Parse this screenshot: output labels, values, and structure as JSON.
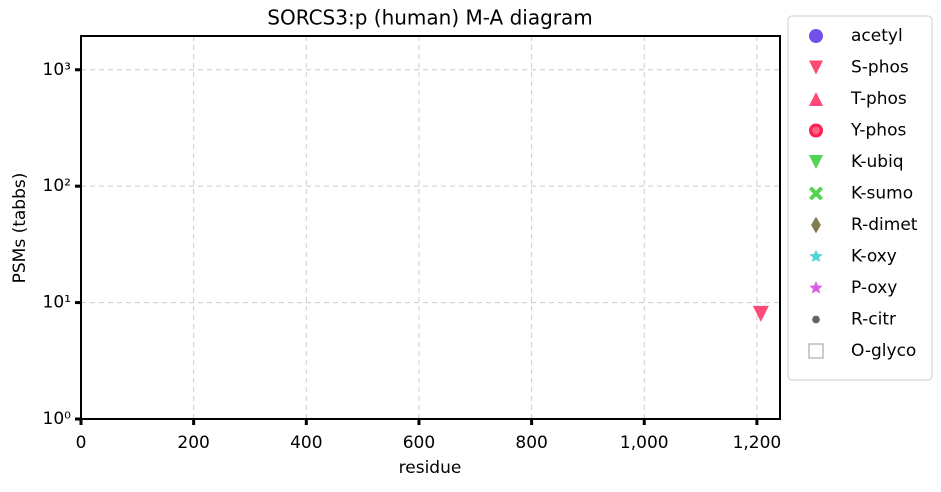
{
  "chart_data": {
    "type": "scatter",
    "title": "SORCS3:p (human) M-A diagram",
    "x_label": "residue",
    "y_label": "PSMs (tabbs)",
    "xlim": [
      0,
      1241
    ],
    "ylim": [
      1,
      1950
    ],
    "log_y": true,
    "grid": true,
    "legend": "outside right",
    "xticks": [
      0,
      200,
      400,
      600,
      800,
      {
        "value": 1000,
        "label": "1,000"
      },
      {
        "value": 1200,
        "label": "1,200"
      }
    ],
    "yticks": [
      {
        "value": 1,
        "label": "10⁰"
      },
      {
        "value": 10,
        "label": "10¹"
      },
      {
        "value": 100,
        "label": "10²"
      },
      {
        "value": 1000,
        "label": "10³"
      }
    ],
    "series": [
      {
        "name": "acetyl",
        "color": "#5b30e6",
        "marker": "circle",
        "x": [],
        "values": []
      },
      {
        "name": "S-phos",
        "color": "#ff2a5f",
        "marker": "triangle-down",
        "x": [
          1207
        ],
        "values": [
          8
        ]
      },
      {
        "name": "T-phos",
        "color": "#ff2a5f",
        "marker": "triangle-up",
        "x": [],
        "values": []
      },
      {
        "name": "Y-phos",
        "color": "#ff1f4f",
        "marker": "ring",
        "x": [],
        "values": []
      },
      {
        "name": "K-ubiq",
        "color": "#33cc33",
        "marker": "triangle-down",
        "x": [],
        "values": []
      },
      {
        "name": "K-sumo",
        "color": "#33cc33",
        "marker": "cross",
        "x": [],
        "values": []
      },
      {
        "name": "R-dimet",
        "color": "#6b6630",
        "marker": "diamond",
        "x": [],
        "values": []
      },
      {
        "name": "K-oxy",
        "color": "#33cccc",
        "marker": "star",
        "x": [],
        "values": []
      },
      {
        "name": "P-oxy",
        "color": "#cc44dd",
        "marker": "star",
        "x": [],
        "values": []
      },
      {
        "name": "R-citr",
        "color": "#666666",
        "marker": "dot",
        "x": [],
        "values": []
      },
      {
        "name": "O-glyco",
        "color": "#999999",
        "marker": "square-open",
        "x": [],
        "values": []
      }
    ]
  }
}
